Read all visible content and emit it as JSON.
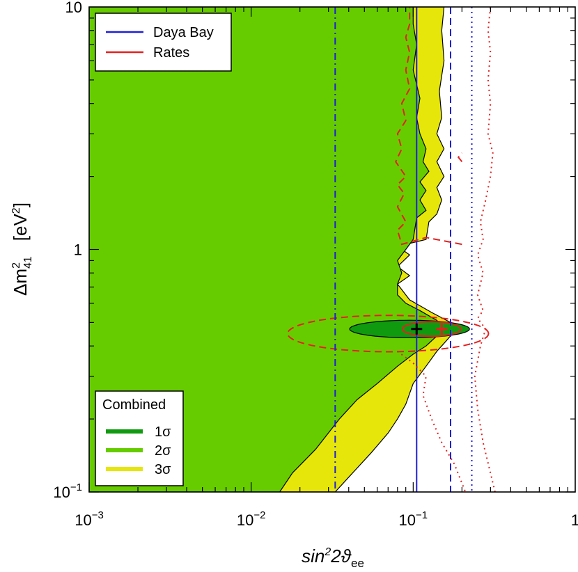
{
  "chart_data": {
    "type": "line",
    "title": "",
    "xlabel": {
      "base": "sin",
      "sup": "2",
      "rest": "2ϑ",
      "sub": "ee"
    },
    "ylabel": {
      "base": "Δm",
      "sup": "2",
      "sub": "41",
      "unit": "[eV",
      "unit_sup": "2",
      "unit_end": "]"
    },
    "x_scale": "log",
    "y_scale": "log",
    "xlim": [
      0.001,
      1
    ],
    "ylim": [
      0.1,
      10
    ],
    "x_ticks": [
      {
        "value": 0.001,
        "base": "10",
        "exp": "−3"
      },
      {
        "value": 0.01,
        "base": "10",
        "exp": "−2"
      },
      {
        "value": 0.1,
        "base": "10",
        "exp": "−1"
      },
      {
        "value": 1,
        "base": "1",
        "exp": ""
      }
    ],
    "y_ticks": [
      {
        "value": 0.1,
        "base": "10",
        "exp": "−1"
      },
      {
        "value": 1,
        "base": "1",
        "exp": ""
      },
      {
        "value": 10,
        "base": "10",
        "exp": ""
      }
    ],
    "colors": {
      "sigma1": "#0f9a0f",
      "sigma2": "#66cc00",
      "sigma3": "#e6e60a",
      "daya_bay": "#1f1fd6",
      "rates": "#e62020"
    },
    "legend_top": {
      "placement": "top-left",
      "entries": [
        {
          "label": "Daya Bay",
          "color": "#1f1fd6"
        },
        {
          "label": "Rates",
          "color": "#e62020"
        }
      ]
    },
    "legend_bottom": {
      "placement": "bottom-left",
      "title": "Combined",
      "entries": [
        {
          "label": "1σ",
          "color": "#0f9a0f"
        },
        {
          "label": "2σ",
          "color": "#66cc00"
        },
        {
          "label": "3σ",
          "color": "#e6e60a"
        }
      ]
    },
    "best_fit_combined": {
      "x": 0.105,
      "y": 0.47
    },
    "best_fit_rates": {
      "x": 0.15,
      "y": 0.47
    },
    "regions": {
      "sigma3_boundary": [
        [
          0.033,
          0.1
        ],
        [
          0.04,
          0.115
        ],
        [
          0.055,
          0.145
        ],
        [
          0.07,
          0.175
        ],
        [
          0.08,
          0.2
        ],
        [
          0.09,
          0.23
        ],
        [
          0.1,
          0.28
        ],
        [
          0.12,
          0.33
        ],
        [
          0.14,
          0.38
        ],
        [
          0.16,
          0.42
        ],
        [
          0.185,
          0.47
        ],
        [
          0.17,
          0.5
        ],
        [
          0.13,
          0.55
        ],
        [
          0.095,
          0.62
        ],
        [
          0.08,
          0.72
        ],
        [
          0.095,
          0.78
        ],
        [
          0.08,
          0.85
        ],
        [
          0.095,
          0.95
        ],
        [
          0.08,
          1.03
        ],
        [
          0.12,
          1.1
        ],
        [
          0.125,
          1.3
        ],
        [
          0.14,
          1.4
        ],
        [
          0.15,
          1.6
        ],
        [
          0.14,
          1.8
        ],
        [
          0.155,
          2.0
        ],
        [
          0.14,
          2.3
        ],
        [
          0.155,
          2.6
        ],
        [
          0.14,
          3.0
        ],
        [
          0.15,
          3.5
        ],
        [
          0.145,
          4.5
        ],
        [
          0.155,
          6.0
        ],
        [
          0.15,
          8.0
        ],
        [
          0.155,
          10
        ]
      ],
      "sigma2_boundary": [
        [
          0.015,
          0.1
        ],
        [
          0.018,
          0.12
        ],
        [
          0.025,
          0.15
        ],
        [
          0.035,
          0.2
        ],
        [
          0.045,
          0.24
        ],
        [
          0.06,
          0.28
        ],
        [
          0.08,
          0.33
        ],
        [
          0.1,
          0.37
        ],
        [
          0.12,
          0.4
        ],
        [
          0.14,
          0.44
        ],
        [
          0.155,
          0.47
        ],
        [
          0.14,
          0.51
        ],
        [
          0.11,
          0.56
        ],
        [
          0.09,
          0.6
        ],
        [
          0.08,
          0.65
        ],
        [
          0.08,
          0.72
        ],
        [
          0.085,
          0.8
        ],
        [
          0.08,
          0.9
        ],
        [
          0.09,
          1.0
        ],
        [
          0.1,
          1.1
        ],
        [
          0.105,
          1.35
        ],
        [
          0.12,
          1.45
        ],
        [
          0.11,
          1.6
        ],
        [
          0.12,
          1.75
        ],
        [
          0.11,
          1.9
        ],
        [
          0.125,
          2.1
        ],
        [
          0.115,
          2.3
        ],
        [
          0.12,
          2.6
        ],
        [
          0.11,
          3.0
        ],
        [
          0.105,
          3.5
        ],
        [
          0.11,
          4.2
        ],
        [
          0.1,
          5.5
        ],
        [
          0.105,
          7.0
        ],
        [
          0.1,
          8.5
        ],
        [
          0.1,
          10
        ]
      ],
      "sigma1_ellipse": {
        "cx": 0.095,
        "cy": 0.47,
        "rx_log": 0.37,
        "ry_log": 0.036
      },
      "rates_solid_ellipse": {
        "cx": 0.13,
        "cy": 0.47,
        "rx_log": 0.18,
        "ry_log": 0.03
      },
      "rates_dashed_ellipse": {
        "cx": 0.07,
        "cy": 0.45,
        "rx_log": 0.62,
        "ry_log": 0.075
      }
    },
    "series": [
      {
        "name": "Daya Bay",
        "style": "solid",
        "color": "#1f1fd6",
        "x_const": 0.105
      },
      {
        "style": "dashed",
        "color": "#1f1fd6",
        "x_const": 0.17
      },
      {
        "style": "dotted",
        "color": "#1f1fd6",
        "x_const": 0.23
      },
      {
        "style": "dashdot",
        "color": "#1f1fd6",
        "x_const": 0.033
      },
      {
        "name": "Rates",
        "style": "dashed",
        "color": "#e62020",
        "points": [
          [
            0.2,
            1.05
          ],
          [
            0.12,
            1.12
          ],
          [
            0.085,
            1.05
          ],
          [
            0.08,
            1.2
          ],
          [
            0.09,
            1.3
          ],
          [
            0.08,
            1.5
          ],
          [
            0.088,
            1.7
          ],
          [
            0.08,
            1.85
          ],
          [
            0.09,
            2.0
          ],
          [
            0.078,
            2.3
          ],
          [
            0.085,
            2.6
          ],
          [
            0.08,
            3.0
          ],
          [
            0.09,
            3.4
          ],
          [
            0.085,
            4.0
          ],
          [
            0.095,
            4.6
          ],
          [
            0.09,
            5.5
          ],
          [
            0.095,
            6.5
          ],
          [
            0.09,
            7.5
          ],
          [
            0.095,
            8.5
          ],
          [
            0.095,
            10
          ]
        ]
      },
      {
        "style": "dashed",
        "color": "#e62020",
        "points": [
          [
            0.2,
            2.3
          ],
          [
            0.19,
            2.4
          ],
          [
            0.2,
            2.5
          ]
        ]
      },
      {
        "style": "dotted",
        "color": "#e62020",
        "points": [
          [
            0.08,
            0.38
          ],
          [
            0.1,
            0.34
          ],
          [
            0.12,
            0.3
          ],
          [
            0.115,
            0.25
          ],
          [
            0.13,
            0.2
          ],
          [
            0.15,
            0.16
          ],
          [
            0.18,
            0.13
          ],
          [
            0.21,
            0.1
          ]
        ]
      },
      {
        "style": "dotted",
        "color": "#e62020",
        "points": [
          [
            0.32,
            0.1
          ],
          [
            0.27,
            0.16
          ],
          [
            0.25,
            0.22
          ],
          [
            0.24,
            0.3
          ],
          [
            0.26,
            0.4
          ],
          [
            0.28,
            0.47
          ],
          [
            0.25,
            0.52
          ],
          [
            0.27,
            0.56
          ],
          [
            0.25,
            0.65
          ],
          [
            0.27,
            0.8
          ],
          [
            0.25,
            0.95
          ],
          [
            0.27,
            1.1
          ],
          [
            0.26,
            1.3
          ],
          [
            0.28,
            1.6
          ],
          [
            0.3,
            2.0
          ],
          [
            0.31,
            2.5
          ],
          [
            0.29,
            3.0
          ],
          [
            0.3,
            4.0
          ],
          [
            0.29,
            5.0
          ],
          [
            0.3,
            6.5
          ],
          [
            0.29,
            8.0
          ],
          [
            0.3,
            10
          ]
        ]
      }
    ]
  }
}
